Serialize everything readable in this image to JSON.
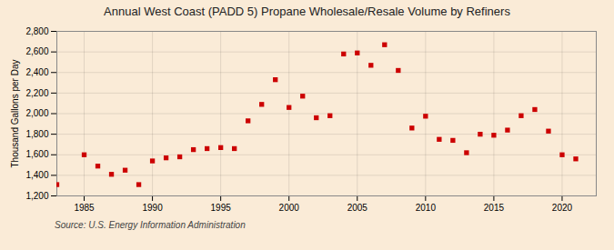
{
  "chart_data": {
    "type": "scatter",
    "title": "Annual West Coast (PADD 5) Propane Wholesale/Resale Volume by Refiners",
    "ylabel": "Thousand Gallons per Day",
    "source": "Source: U.S. Energy Information Administration",
    "color": "#cc0000",
    "marker": "square",
    "grid": true,
    "xlim": [
      1983,
      2022.5
    ],
    "ylim": [
      1200,
      2800
    ],
    "xticks": [
      1985,
      1990,
      1995,
      2000,
      2005,
      2010,
      2015,
      2020
    ],
    "yticks": [
      {
        "value": 1200,
        "label": "1,200"
      },
      {
        "value": 1400,
        "label": "1,400"
      },
      {
        "value": 1600,
        "label": "1,600"
      },
      {
        "value": 1800,
        "label": "1,800"
      },
      {
        "value": 2000,
        "label": "2,000"
      },
      {
        "value": 2200,
        "label": "2,200"
      },
      {
        "value": 2400,
        "label": "2,400"
      },
      {
        "value": 2600,
        "label": "2,600"
      },
      {
        "value": 2800,
        "label": "2,800"
      }
    ],
    "x": [
      1983,
      1985,
      1986,
      1987,
      1988,
      1989,
      1990,
      1991,
      1992,
      1993,
      1994,
      1995,
      1996,
      1997,
      1998,
      1999,
      2000,
      2001,
      2002,
      2003,
      2004,
      2005,
      2006,
      2007,
      2008,
      2009,
      2010,
      2011,
      2012,
      2013,
      2014,
      2015,
      2016,
      2017,
      2018,
      2019,
      2020,
      2021
    ],
    "values": [
      1310,
      1600,
      1490,
      1410,
      1450,
      1310,
      1540,
      1570,
      1580,
      1650,
      1660,
      1670,
      1660,
      1930,
      2090,
      2330,
      2060,
      2170,
      1960,
      1980,
      2580,
      2590,
      2470,
      2670,
      2420,
      1860,
      1975,
      1750,
      1740,
      1620,
      1800,
      1790,
      1840,
      1980,
      2040,
      1830,
      1600,
      1560
    ]
  }
}
